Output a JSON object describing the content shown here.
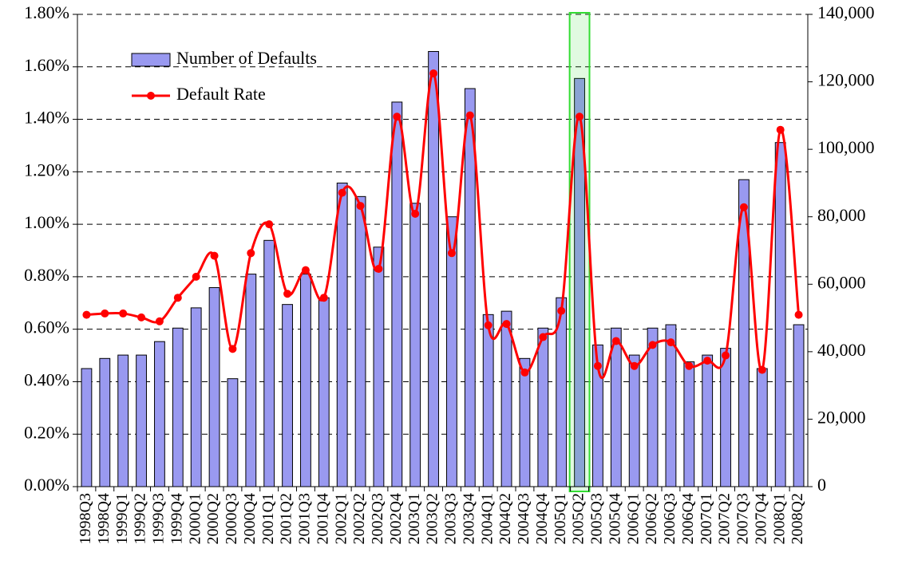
{
  "chart_data": {
    "type": "bar_line",
    "categories": [
      "1998Q3",
      "1998Q4",
      "1999Q1",
      "1999Q2",
      "1999Q3",
      "1999Q4",
      "2000Q1",
      "2000Q2",
      "2000Q3",
      "2000Q4",
      "2001Q1",
      "2001Q2",
      "2001Q3",
      "2001Q4",
      "2002Q1",
      "2002Q2",
      "2002Q3",
      "2002Q4",
      "2003Q1",
      "2003Q2",
      "2003Q3",
      "2003Q4",
      "2004Q1",
      "2004Q2",
      "2004Q3",
      "2004Q4",
      "2005Q1",
      "2005Q2",
      "2005Q3",
      "2005Q4",
      "2006Q1",
      "2006Q2",
      "2006Q3",
      "2006Q4",
      "2007Q1",
      "2007Q2",
      "2007Q3",
      "2007Q4",
      "2008Q1",
      "2008Q2"
    ],
    "series": [
      {
        "name": "Number of Defaults",
        "type": "bar",
        "axis": "y2",
        "color": "#9999f0",
        "values": [
          35000,
          38000,
          39000,
          39000,
          43000,
          47000,
          53000,
          59000,
          32000,
          63000,
          73000,
          54000,
          63000,
          56000,
          90000,
          86000,
          71000,
          114000,
          84000,
          129000,
          80000,
          118000,
          51000,
          52000,
          38000,
          47000,
          56000,
          121000,
          42000,
          47000,
          39000,
          47000,
          48000,
          37000,
          39000,
          41000,
          91000,
          35000,
          102000,
          48000
        ]
      },
      {
        "name": "Default Rate",
        "type": "line",
        "axis": "y",
        "color": "#ff0000",
        "values": [
          0.655,
          0.66,
          0.66,
          0.645,
          0.63,
          0.72,
          0.8,
          0.88,
          0.525,
          0.89,
          1.0,
          0.735,
          0.825,
          0.72,
          1.12,
          1.07,
          0.83,
          1.41,
          1.04,
          1.575,
          0.89,
          1.415,
          0.615,
          0.62,
          0.435,
          0.57,
          0.67,
          1.41,
          0.46,
          0.555,
          0.46,
          0.54,
          0.55,
          0.46,
          0.48,
          0.5,
          1.065,
          0.445,
          1.36,
          0.655
        ]
      }
    ],
    "ylim": [
      0,
      1.8
    ],
    "yticks": [
      {
        "value": 0,
        "label": "0.00%"
      },
      {
        "value": 0.2,
        "label": "0.20%"
      },
      {
        "value": 0.4,
        "label": "0.40%"
      },
      {
        "value": 0.6,
        "label": "0.60%"
      },
      {
        "value": 0.8,
        "label": "0.80%"
      },
      {
        "value": 1.0,
        "label": "1.00%"
      },
      {
        "value": 1.2,
        "label": "1.20%"
      },
      {
        "value": 1.4,
        "label": "1.40%"
      },
      {
        "value": 1.6,
        "label": "1.60%"
      },
      {
        "value": 1.8,
        "label": "1.80%"
      }
    ],
    "y2lim": [
      0,
      140000
    ],
    "y2ticks": [
      0,
      {
        "value": 20000,
        "label": "20,000"
      },
      {
        "value": 40000,
        "label": "40,000"
      },
      {
        "value": 60000,
        "label": "60,000"
      },
      {
        "value": 80000,
        "label": "80,000"
      },
      {
        "value": 100000,
        "label": "100,000"
      },
      {
        "value": 120000,
        "label": "120,000"
      },
      {
        "value": 140000,
        "label": "140,000"
      }
    ],
    "grid": true,
    "legend": "upper left",
    "highlight_category": "2005Q2",
    "highlight_color": "#33dd33"
  }
}
